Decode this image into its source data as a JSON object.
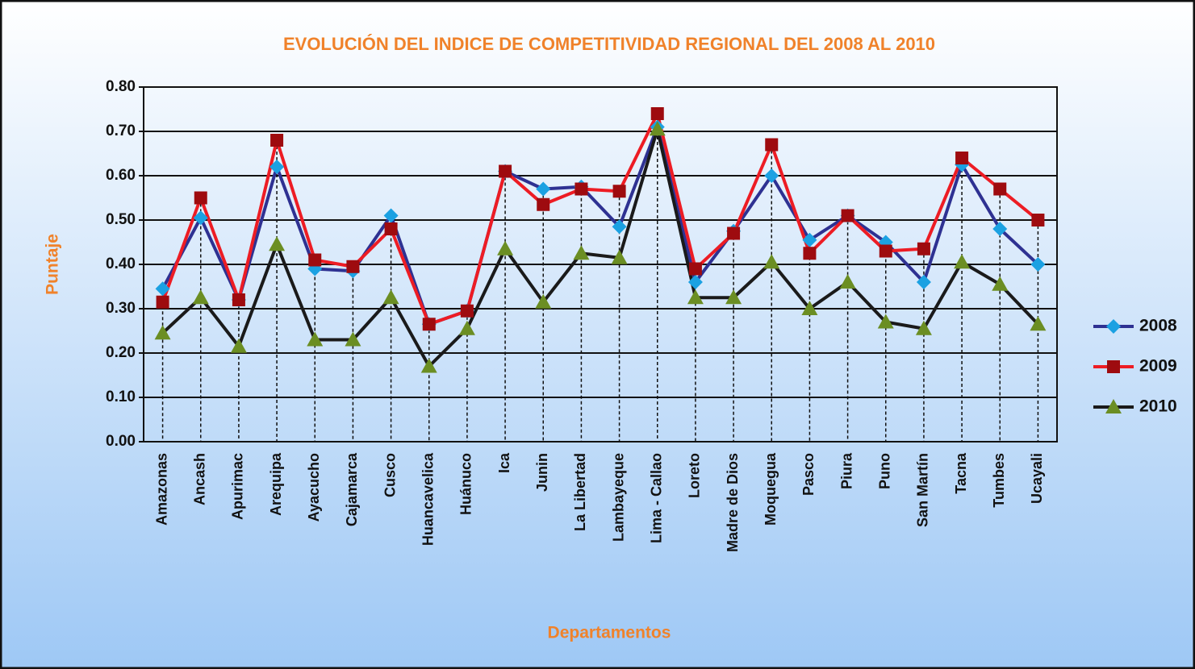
{
  "chart_data": {
    "type": "line",
    "title": "EVOLUCIÓN DEL INDICE DE COMPETITIVIDAD REGIONAL DEL 2008 AL 2010",
    "x_label": "Departamentos",
    "y_label": "Puntaje",
    "categories": [
      "Amazonas",
      "Ancash",
      "Apurimac",
      "Arequipa",
      "Ayacucho",
      "Cajamarca",
      "Cusco",
      "Huancavelica",
      "Huánuco",
      "Ica",
      "Junin",
      "La Libertad",
      "Lambayeque",
      "Lima - Callao",
      "Loreto",
      "Madre de Dios",
      "Moquegua",
      "Pasco",
      "Piura",
      "Puno",
      "San Martín",
      "Tacna",
      "Tumbes",
      "Ucayali"
    ],
    "series": [
      {
        "name": "2008",
        "color": "#2e3192",
        "marker_color": "#1ba1e2",
        "marker": "diamond",
        "values": [
          0.345,
          0.505,
          0.32,
          0.62,
          0.39,
          0.385,
          0.51,
          0.265,
          0.295,
          0.61,
          0.57,
          0.575,
          0.485,
          0.71,
          0.36,
          0.475,
          0.6,
          0.455,
          0.51,
          0.45,
          0.36,
          0.625,
          0.48,
          0.4
        ]
      },
      {
        "name": "2009",
        "color": "#ed1c24",
        "marker_color": "#9e0b0f",
        "marker": "square",
        "values": [
          0.315,
          0.55,
          0.32,
          0.68,
          0.41,
          0.395,
          0.48,
          0.265,
          0.295,
          0.61,
          0.535,
          0.57,
          0.565,
          0.74,
          0.39,
          0.47,
          0.67,
          0.425,
          0.51,
          0.43,
          0.435,
          0.64,
          0.57,
          0.5
        ]
      },
      {
        "name": "2010",
        "color": "#1a1a1a",
        "marker_color": "#6b8e23",
        "marker": "triangle",
        "values": [
          0.245,
          0.325,
          0.215,
          0.445,
          0.23,
          0.23,
          0.325,
          0.17,
          0.255,
          0.435,
          0.315,
          0.425,
          0.415,
          0.705,
          0.325,
          0.325,
          0.405,
          0.3,
          0.36,
          0.27,
          0.255,
          0.405,
          0.355,
          0.265
        ]
      }
    ],
    "ylim": [
      0,
      0.8
    ],
    "yticks": [
      {
        "value": 0,
        "label": "0.00"
      },
      {
        "value": 0.1,
        "label": "0.10"
      },
      {
        "value": 0.2,
        "label": "0.20"
      },
      {
        "value": 0.3,
        "label": "0.30"
      },
      {
        "value": 0.4,
        "label": "0.40"
      },
      {
        "value": 0.5,
        "label": "0.50"
      },
      {
        "value": 0.6,
        "label": "0.60"
      },
      {
        "value": 0.7,
        "label": "0.70"
      },
      {
        "value": 0.8,
        "label": "0.80"
      }
    ],
    "grid": true,
    "legend": "right"
  }
}
